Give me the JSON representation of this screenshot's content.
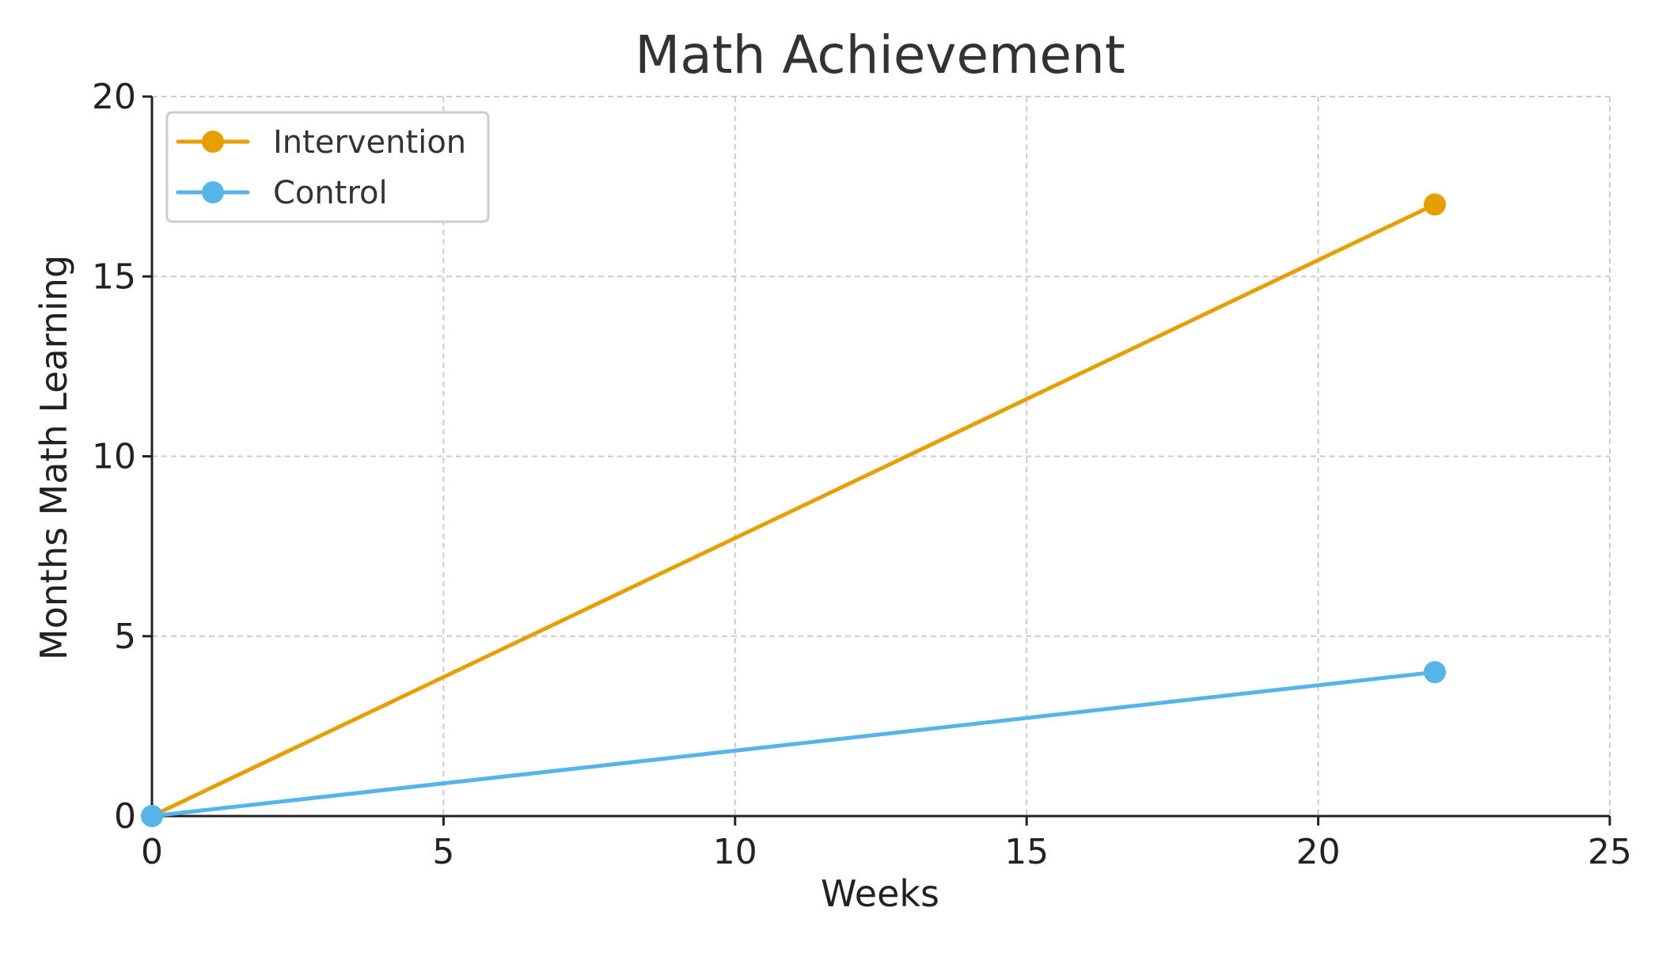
{
  "chart_data": {
    "type": "line",
    "title": "Math Achievement",
    "xlabel": "Weeks",
    "ylabel": "Months Math Learning",
    "xlim": [
      0,
      25
    ],
    "ylim": [
      0,
      20
    ],
    "xticks": [
      0,
      5,
      10,
      15,
      20,
      25
    ],
    "yticks": [
      0,
      5,
      10,
      15,
      20
    ],
    "grid": true,
    "legend_position": "top-left",
    "series": [
      {
        "name": "Intervention",
        "color": "#E69F00",
        "x": [
          0,
          22
        ],
        "y": [
          0,
          17
        ]
      },
      {
        "name": "Control",
        "color": "#56B4E9",
        "x": [
          0,
          22
        ],
        "y": [
          0,
          4
        ]
      }
    ]
  }
}
